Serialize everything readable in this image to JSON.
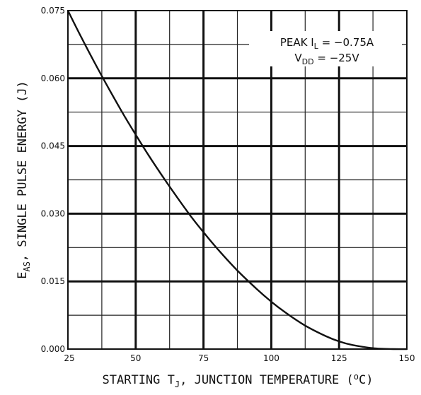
{
  "chart_data": {
    "type": "line",
    "title": "",
    "xlabel": "STARTING T_J, JUNCTION TEMPERATURE (°C)",
    "ylabel": "E_AS, SINGLE PULSE ENERGY (J)",
    "xlim": [
      25,
      150
    ],
    "ylim": [
      0,
      0.075
    ],
    "x_ticks": [
      25,
      50,
      75,
      100,
      125,
      150
    ],
    "x_tick_labels": [
      "25",
      "50",
      "75",
      "100",
      "125",
      "150"
    ],
    "y_ticks": [
      0,
      0.015,
      0.03,
      0.045,
      0.06,
      0.075
    ],
    "y_tick_labels": [
      "0.000",
      "0.015",
      "0.030",
      "0.045",
      "0.060",
      "0.075"
    ],
    "grid": true,
    "series": [
      {
        "x": [
          25,
          30,
          37.5,
          45,
          50,
          55,
          62.5,
          70,
          75,
          80,
          87.5,
          95,
          100,
          105,
          112.5,
          120,
          125,
          130,
          137.5,
          145,
          150
        ],
        "values": [
          0.075,
          0.069,
          0.0605,
          0.0525,
          0.0475,
          0.0427,
          0.036,
          0.0297,
          0.0259,
          0.0223,
          0.0174,
          0.0131,
          0.0105,
          0.0082,
          0.0052,
          0.0029,
          0.0017,
          0.0009,
          0.0002,
          0.0,
          0.0
        ]
      }
    ],
    "annotations": {
      "peak_prefix": "PEAK I",
      "peak_sub": "L",
      "peak_value": " = −0.75A",
      "vdd_prefix": "V",
      "vdd_sub": "DD",
      "vdd_value": " = −25V"
    },
    "labels": {
      "x_part1": "STARTING T",
      "x_sub": "J",
      "x_part2": ",  JUNCTION TEMPERATURE  (",
      "x_sup": "o",
      "x_part3": "C)",
      "y_part1": "E",
      "y_sub": "AS",
      "y_part2": ",  SINGLE PULSE ENERGY  (J)"
    }
  }
}
